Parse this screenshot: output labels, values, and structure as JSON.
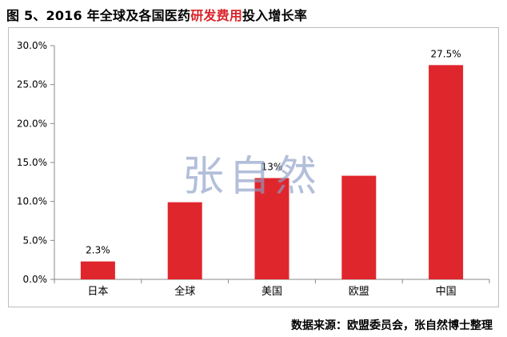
{
  "title": {
    "prefix": "图 5、2016 年全球及各国医药",
    "highlight": "研发费用",
    "suffix": "投入增长率"
  },
  "watermark": "张自然",
  "source": "数据来源：欧盟委员会，张自然博士整理",
  "colors": {
    "bar": "#e0262d",
    "highlight": "#d9262c",
    "watermark": "#8c9ec7"
  },
  "chart_data": {
    "type": "bar",
    "categories": [
      "日本",
      "全球",
      "美国",
      "欧盟",
      "中国"
    ],
    "values": [
      2.3,
      9.9,
      13.0,
      13.3,
      27.5
    ],
    "data_labels": [
      "2.3%",
      "",
      "13%",
      "",
      "27.5%"
    ],
    "y_ticks": [
      "0.0%",
      "5.0%",
      "10.0%",
      "15.0%",
      "20.0%",
      "25.0%",
      "30.0%"
    ],
    "ylim": [
      0,
      30
    ],
    "grid": false,
    "legend": "none",
    "title": "图 5、2016 年全球及各国医药研发费用投入增长率",
    "xlabel": "",
    "ylabel": ""
  }
}
